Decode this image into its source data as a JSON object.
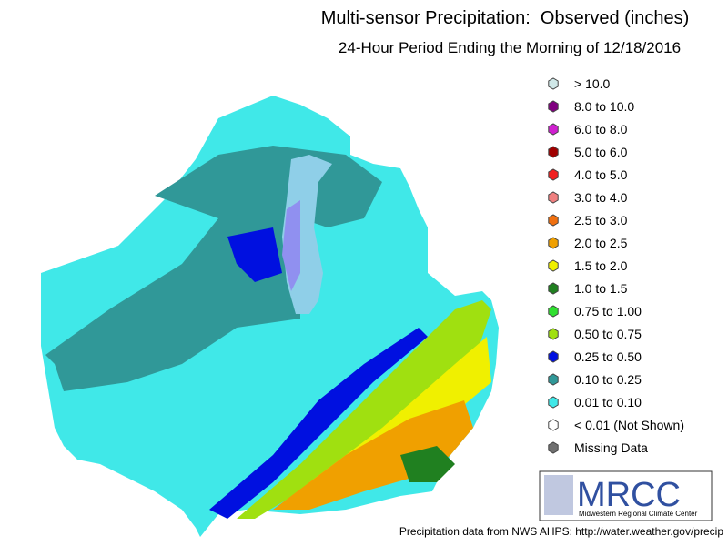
{
  "header": {
    "title": "Multi-sensor Precipitation:  Observed (inches)",
    "subtitle": "24-Hour Period Ending the Morning of 12/18/2016"
  },
  "legend": {
    "items": [
      {
        "label": "> 10.0",
        "color": "#d0e8e8"
      },
      {
        "label": "8.0 to 10.0",
        "color": "#800080"
      },
      {
        "label": "6.0 to 8.0",
        "color": "#d020d0"
      },
      {
        "label": "5.0 to 6.0",
        "color": "#a00000"
      },
      {
        "label": "4.0 to 5.0",
        "color": "#f02020"
      },
      {
        "label": "3.0 to 4.0",
        "color": "#f08080"
      },
      {
        "label": "2.5 to 3.0",
        "color": "#f07010"
      },
      {
        "label": "2.0 to 2.5",
        "color": "#f0a000"
      },
      {
        "label": "1.5 to 2.0",
        "color": "#f0f000"
      },
      {
        "label": "1.0 to 1.5",
        "color": "#208020"
      },
      {
        "label": "0.75 to 1.00",
        "color": "#30e030"
      },
      {
        "label": "0.50 to 0.75",
        "color": "#a0e010"
      },
      {
        "label": "0.25 to 0.50",
        "color": "#0010e0"
      },
      {
        "label": "0.10 to 0.25",
        "color": "#309898"
      },
      {
        "label": "0.01 to 0.10",
        "color": "#40e8e8"
      },
      {
        "label": "< 0.01 (Not Shown)",
        "color": "#ffffff"
      },
      {
        "label": "Missing Data",
        "color": "#707070"
      }
    ]
  },
  "logo": {
    "name": "MRCC",
    "full_name": "Midwestern Regional Climate Center"
  },
  "footer": "Precipitation data from NWS AHPS: http://water.weather.gov/precip"
}
